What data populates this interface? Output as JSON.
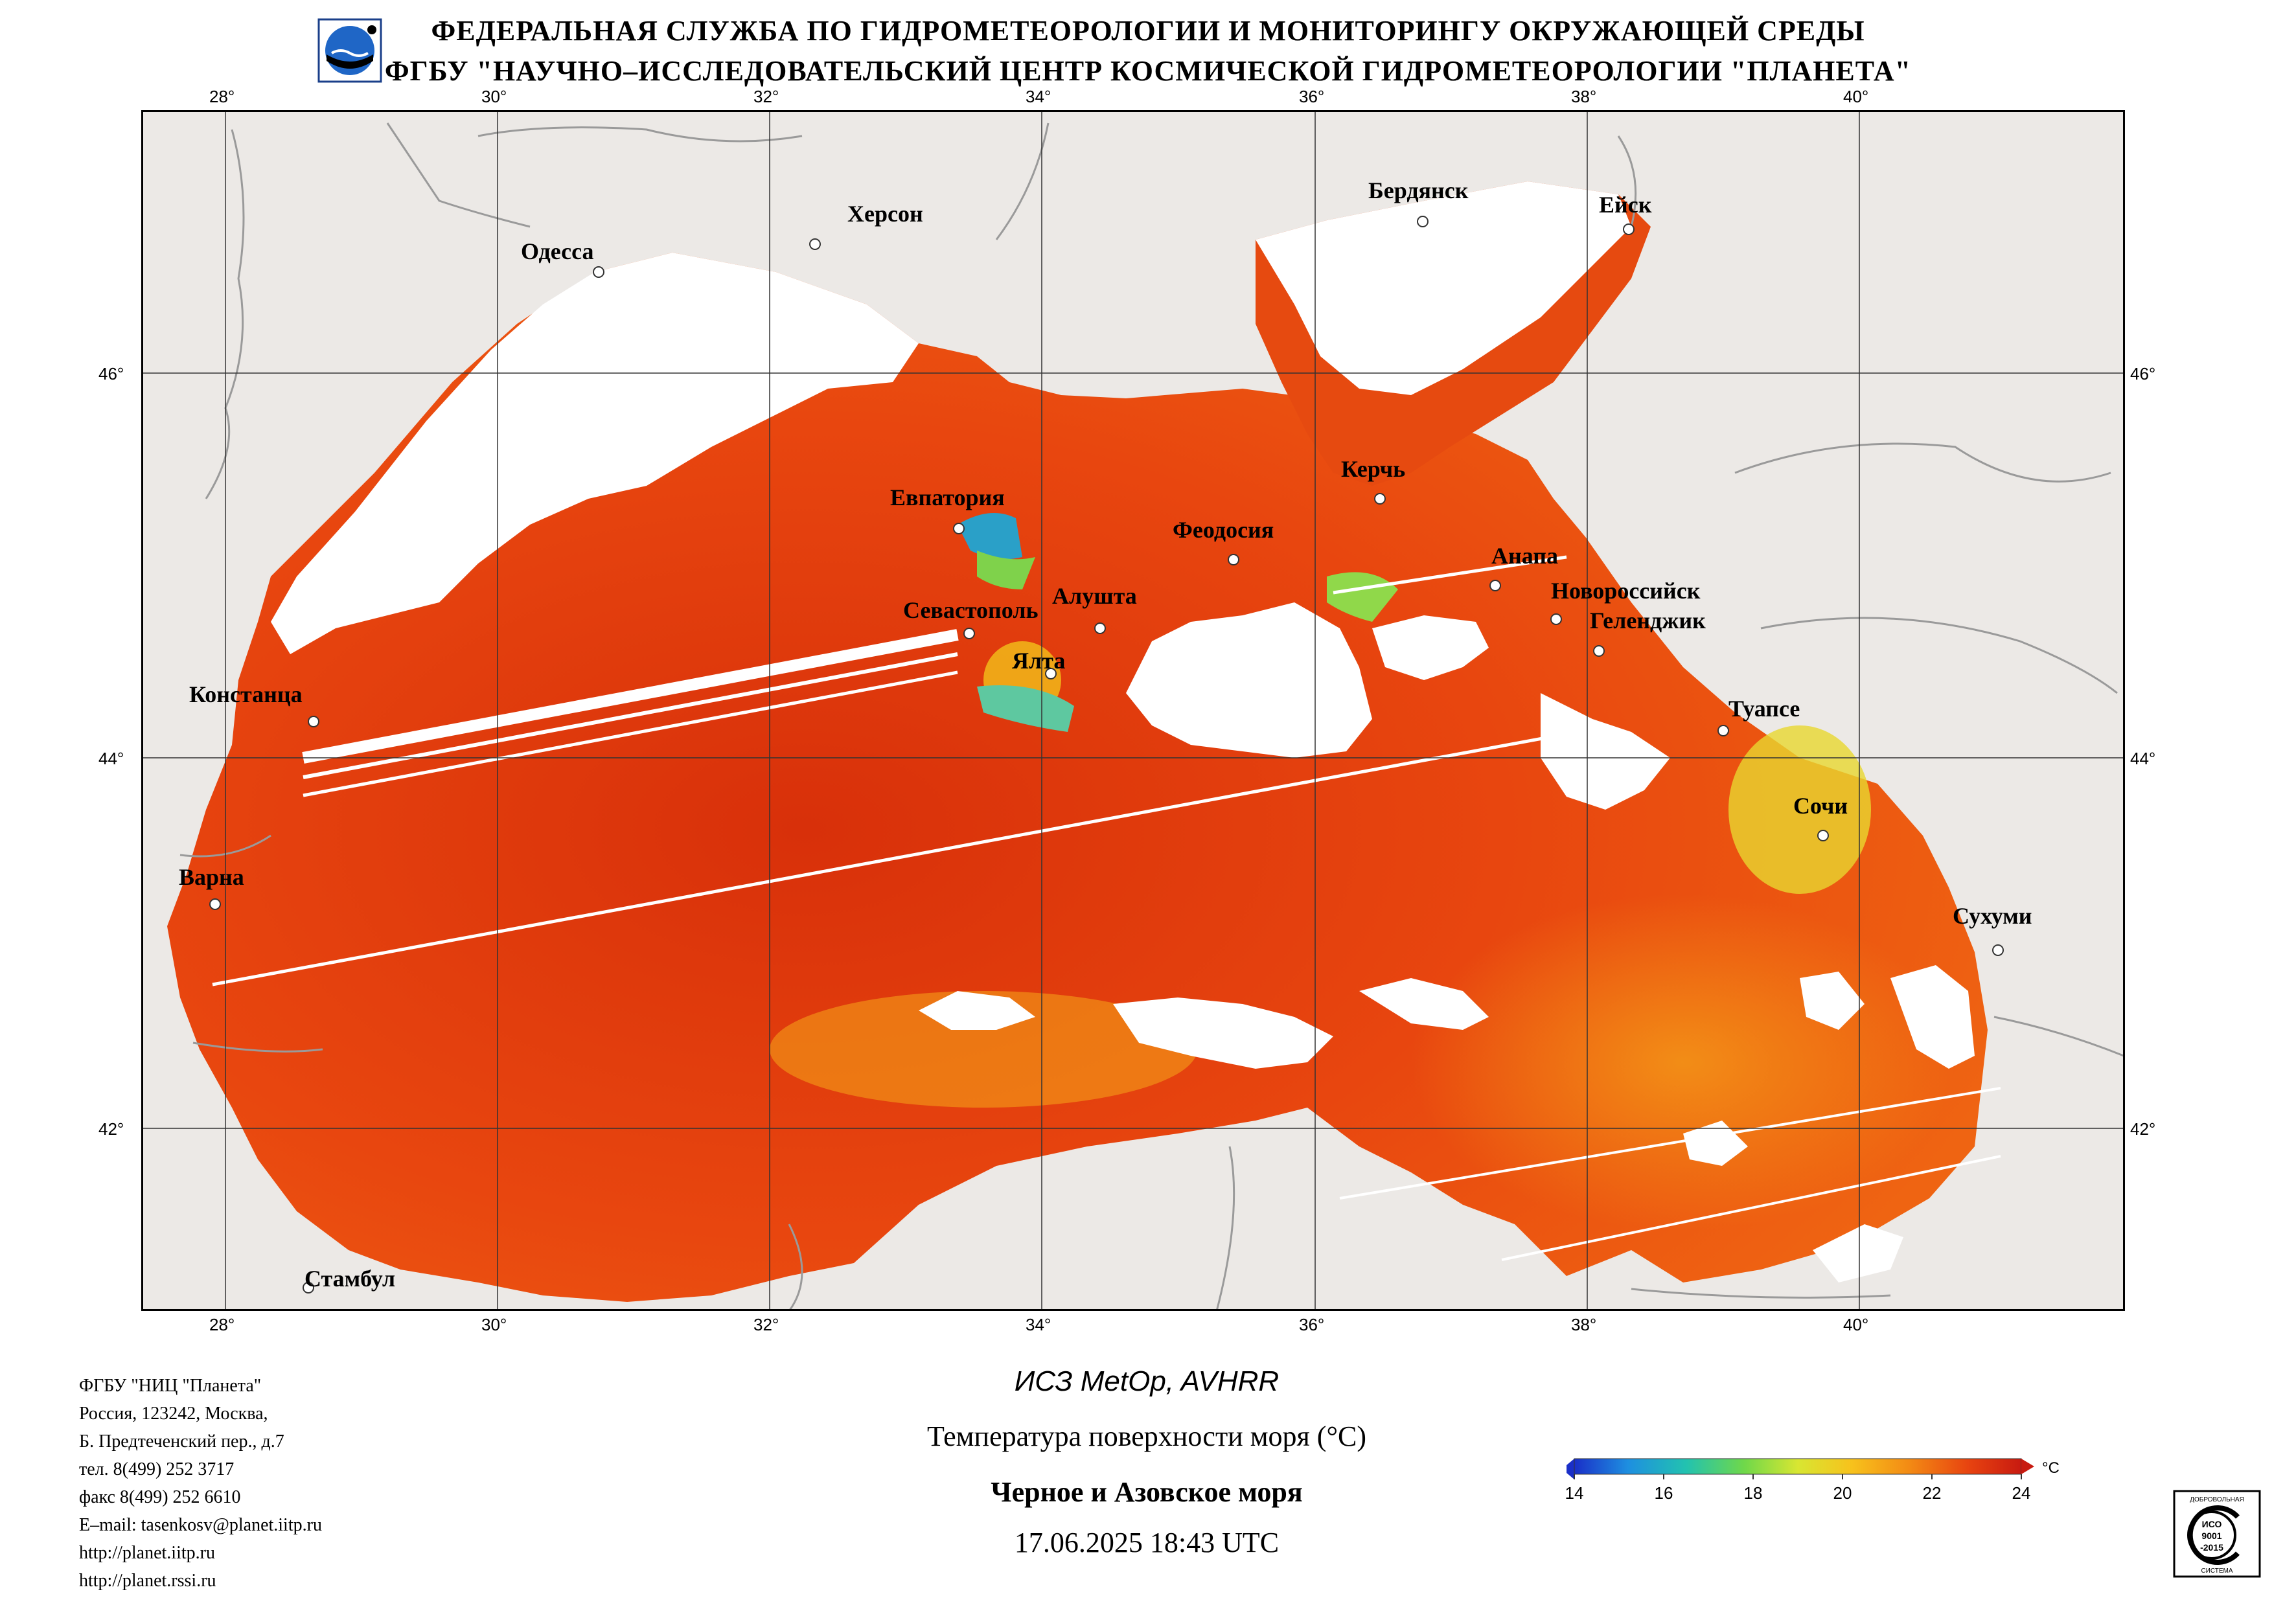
{
  "header": {
    "line1": "ФЕДЕРАЛЬНАЯ СЛУЖБА ПО ГИДРОМЕТЕОРОЛОГИИ И МОНИТОРИНГУ ОКРУЖАЮЩЕЙ СРЕДЫ",
    "line2": "ФГБУ \"НАУЧНО–ИССЛЕДОВАТЕЛЬСКИЙ ЦЕНТР КОСМИЧЕСКОЙ ГИДРОМЕТЕОРОЛОГИИ \"ПЛАНЕТА\""
  },
  "map": {
    "lon_labels": [
      "28°",
      "30°",
      "32°",
      "34°",
      "36°",
      "38°",
      "40°"
    ],
    "lat_labels": [
      "46°",
      "44°",
      "42°"
    ],
    "colors": {
      "land": "#ece9e6",
      "cloud": "#ffffff",
      "sea_warm": "#e8420f",
      "sea_hot": "#d42a0a",
      "sea_mid": "#f06a10",
      "sea_cool": "#f7b418",
      "sea_cold": "#7ed34a",
      "sea_coldest": "#1f9bd8",
      "border": "#9a9a9a"
    },
    "cities": [
      {
        "name": "Одесса"
      },
      {
        "name": "Херсон"
      },
      {
        "name": "Бердянск"
      },
      {
        "name": "Ейск"
      },
      {
        "name": "Керчь"
      },
      {
        "name": "Евпатория"
      },
      {
        "name": "Феодосия"
      },
      {
        "name": "Анапа"
      },
      {
        "name": "Севастополь"
      },
      {
        "name": "Алушта"
      },
      {
        "name": "Новороссийск"
      },
      {
        "name": "Геленджик"
      },
      {
        "name": "Ялта"
      },
      {
        "name": "Констанца"
      },
      {
        "name": "Туапсе"
      },
      {
        "name": "Сочи"
      },
      {
        "name": "Варна"
      },
      {
        "name": "Сухуми"
      },
      {
        "name": "Стамбул"
      }
    ]
  },
  "org_info": [
    "ФГБУ \"НИЦ \"Планета\"",
    "Россия, 123242, Москва,",
    "Б. Предтеченский пер., д.7",
    "тел. 8(499) 252 3717",
    "факс 8(499) 252 6610",
    "E–mail: tasenkosv@planet.iitp.ru",
    "http://planet.iitp.ru",
    "http://planet.rssi.ru"
  ],
  "caption": {
    "satellite": "ИСЗ MetOp, AVHRR",
    "product": "Температура поверхности моря (°C)",
    "region": "Черное и Азовское моря",
    "datetime": "17.06.2025 18:43 UTC"
  },
  "colorbar": {
    "ticks": [
      "14",
      "16",
      "18",
      "20",
      "22",
      "24"
    ],
    "unit": "°C",
    "min": 14,
    "max": 24
  },
  "certificate": {
    "top_text": "ДОБРОВОЛЬНАЯ",
    "line1": "ИСО",
    "line2": "9001",
    "line3": "-2015",
    "bottom_text": "СИСТЕМА"
  }
}
